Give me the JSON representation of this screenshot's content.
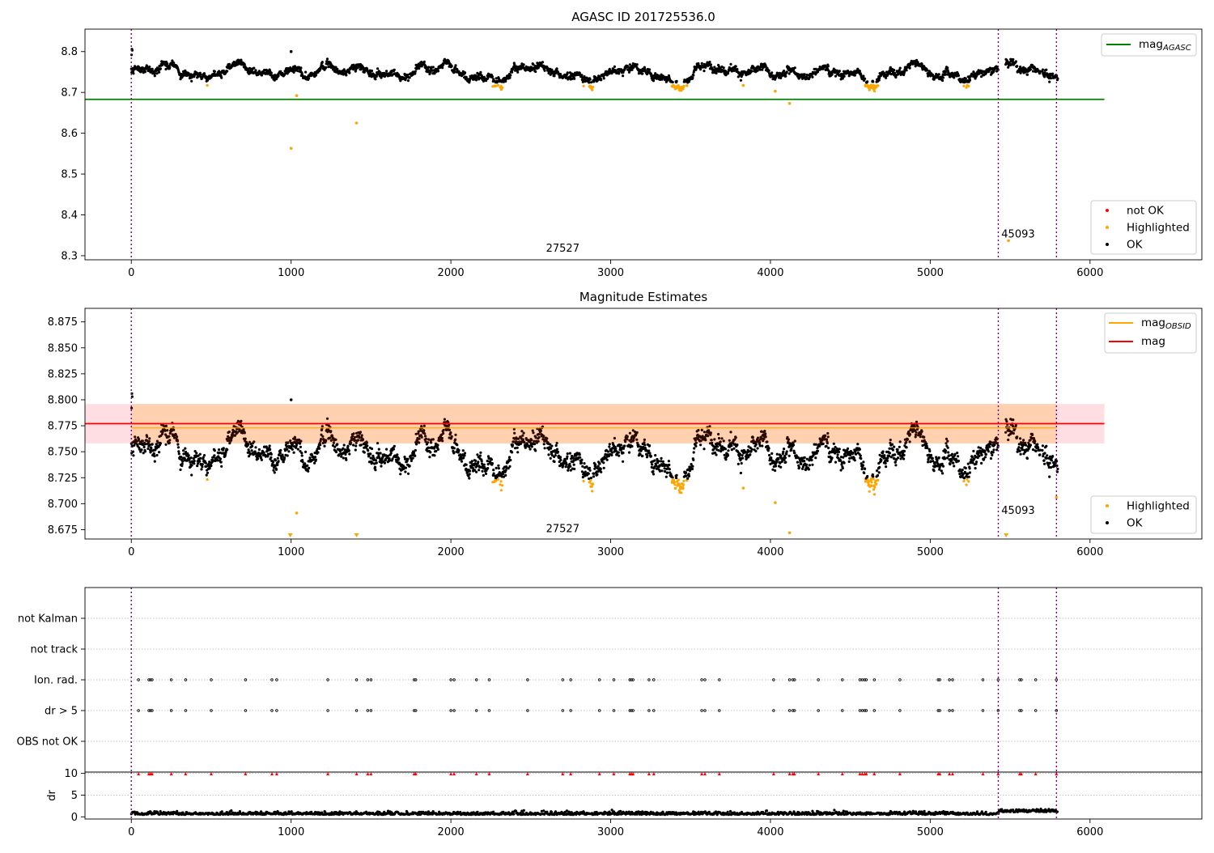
{
  "chart_data": [
    {
      "id": "top",
      "type": "scatter",
      "title": "AGASC ID 201725536.0",
      "xlim": [
        -290,
        6700
      ],
      "ylim": [
        8.29,
        8.855
      ],
      "xticks": [
        0,
        1000,
        2000,
        3000,
        4000,
        5000,
        6000
      ],
      "yticks": [
        8.3,
        8.4,
        8.5,
        8.6,
        8.7,
        8.8
      ],
      "vlines": [
        0,
        5426,
        5790
      ],
      "hline": {
        "y": 8.683,
        "x": [
          -290,
          6090
        ],
        "color": "#008000"
      },
      "annotations": [
        {
          "text": "27527",
          "x": 2700,
          "y": 8.31
        },
        {
          "text": "45093",
          "x": 5550,
          "y": 8.345
        }
      ],
      "legend_top": [
        {
          "label": "mag",
          "sub": "AGASC",
          "color": "#008000"
        }
      ],
      "legend_bottom": [
        {
          "label": "not OK",
          "color": "#ff0000"
        },
        {
          "label": "Highlighted",
          "color": "#ffa500"
        },
        {
          "label": "OK",
          "color": "#000000"
        }
      ],
      "outliers": [
        {
          "x": 1000,
          "y": 8.563
        },
        {
          "x": 1410,
          "y": 8.625
        },
        {
          "x": 1035,
          "y": 8.692
        },
        {
          "x": 4030,
          "y": 8.703
        },
        {
          "x": 4120,
          "y": 8.673
        },
        {
          "x": 3830,
          "y": 8.717
        },
        {
          "x": 5490,
          "y": 8.337
        },
        {
          "x": 1000,
          "y": 8.8
        }
      ]
    },
    {
      "id": "mid",
      "type": "scatter",
      "title": "Magnitude Estimates",
      "xlim": [
        -290,
        6700
      ],
      "ylim": [
        8.666,
        8.888
      ],
      "xticks": [
        0,
        1000,
        2000,
        3000,
        4000,
        5000,
        6000
      ],
      "yticks": [
        8.675,
        8.7,
        8.725,
        8.75,
        8.775,
        8.8,
        8.825,
        8.85,
        8.875
      ],
      "vlines": [
        0,
        5426,
        5790
      ],
      "hline": {
        "y": 8.777,
        "x": [
          -290,
          6090
        ],
        "color": "#ff0000"
      },
      "band": {
        "y": [
          8.758,
          8.796
        ],
        "x": [
          -290,
          6090
        ]
      },
      "annotations": [
        {
          "text": "27527",
          "x": 2700,
          "y": 8.6725
        },
        {
          "text": "45093",
          "x": 5550,
          "y": 8.69
        }
      ],
      "legend_top": [
        {
          "label": "mag",
          "sub": "OBSID",
          "color": "#ffa500"
        },
        {
          "label": "mag",
          "sub": "",
          "color": "#ff0000"
        }
      ],
      "legend_bottom": [
        {
          "label": "Highlighted",
          "color": "#ffa500"
        },
        {
          "label": "OK",
          "color": "#000000"
        }
      ],
      "outliers": [
        {
          "x": 1035,
          "y": 8.691
        },
        {
          "x": 4030,
          "y": 8.701
        },
        {
          "x": 4120,
          "y": 8.672
        },
        {
          "x": 3830,
          "y": 8.715
        },
        {
          "x": 1000,
          "y": 8.8
        },
        {
          "x": 5790,
          "y": 8.706
        }
      ],
      "down_markers": [
        995,
        1410,
        5475
      ]
    },
    {
      "id": "flags",
      "type": "scatter",
      "xlim": [
        -290,
        6700
      ],
      "categories": [
        "OBS not OK",
        "dr > 5",
        "Ion. rad.",
        "not track",
        "not Kalman"
      ],
      "vlines": [
        0,
        5426,
        5790
      ],
      "flag_x": [
        45,
        110,
        120,
        130,
        250,
        340,
        500,
        715,
        880,
        910,
        1230,
        1410,
        1480,
        1500,
        1770,
        1780,
        2000,
        2020,
        2160,
        2240,
        2480,
        2700,
        2750,
        2930,
        3020,
        3120,
        3130,
        3140,
        3240,
        3270,
        3570,
        3590,
        3680,
        4020,
        4120,
        4140,
        4150,
        4300,
        4450,
        4560,
        4575,
        4590,
        4600,
        4650,
        4810,
        5050,
        5060,
        5120,
        5140,
        5330,
        5425,
        5560,
        5570,
        5660,
        5790
      ],
      "dr": {
        "yticks": [
          0,
          5,
          10
        ],
        "ylim": [
          -0.5,
          10.3
        ],
        "ylabel": "dr",
        "xticks": [
          0,
          1000,
          2000,
          3000,
          4000,
          5000,
          6000
        ]
      }
    }
  ]
}
